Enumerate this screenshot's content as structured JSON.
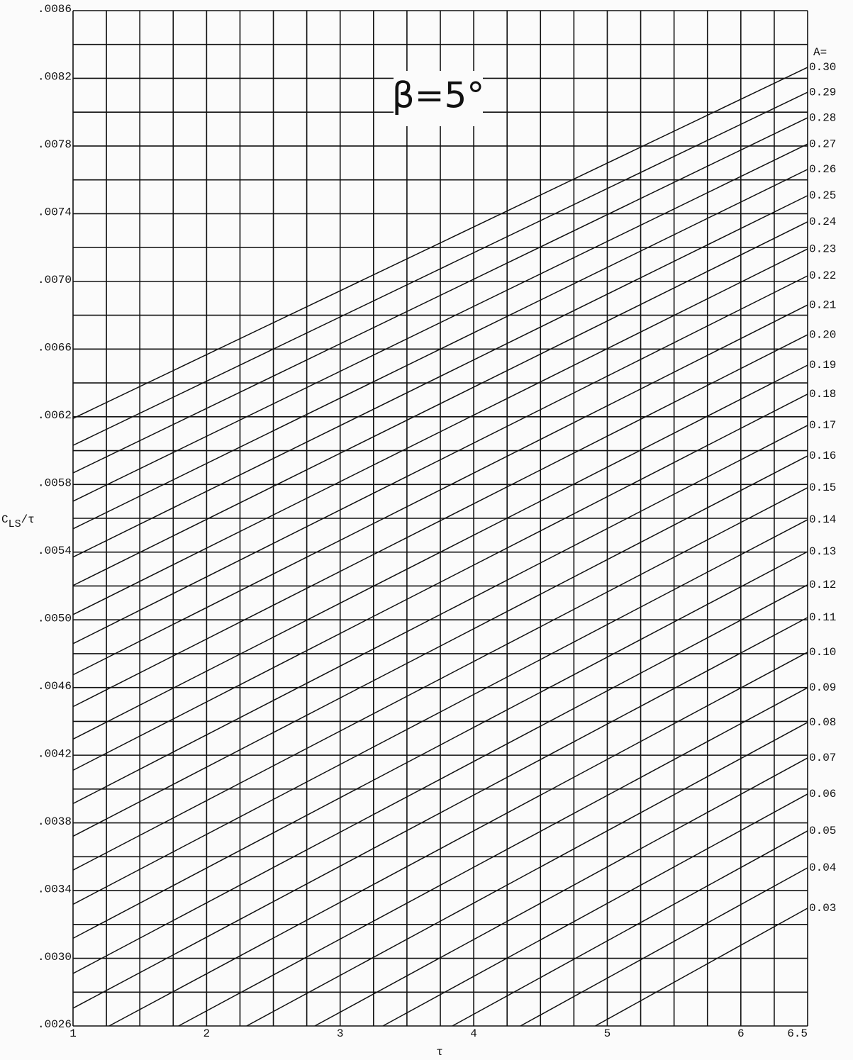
{
  "chart_data": {
    "type": "line",
    "title": "β=5°",
    "ylabel": [
      "C",
      "LS",
      "/τ"
    ],
    "xlabel": "τ",
    "legend_title": "A=",
    "color": "#111111",
    "grid": true,
    "xlim": [
      1,
      6.5
    ],
    "xticks": [
      1,
      2,
      3,
      4,
      5,
      6,
      6.5
    ],
    "xticks_minor": [
      1.25,
      1.5,
      1.75,
      2.25,
      2.5,
      2.75,
      3.25,
      3.5,
      3.75,
      4.25,
      4.5,
      4.75,
      5.25,
      5.5,
      5.75,
      6.25
    ],
    "ylim": [
      0.0026,
      0.0086
    ],
    "yticks": [
      {
        "value": 0.0026,
        "label": ".0026"
      },
      {
        "value": 0.003,
        "label": ".0030"
      },
      {
        "value": 0.0034,
        "label": ".0034"
      },
      {
        "value": 0.0038,
        "label": ".0038"
      },
      {
        "value": 0.0042,
        "label": ".0042"
      },
      {
        "value": 0.0046,
        "label": ".0046"
      },
      {
        "value": 0.005,
        "label": ".0050"
      },
      {
        "value": 0.0054,
        "label": ".0054"
      },
      {
        "value": 0.0058,
        "label": ".0058"
      },
      {
        "value": 0.0062,
        "label": ".0062"
      },
      {
        "value": 0.0066,
        "label": ".0066"
      },
      {
        "value": 0.007,
        "label": ".0070"
      },
      {
        "value": 0.0074,
        "label": ".0074"
      },
      {
        "value": 0.0078,
        "label": ".0078"
      },
      {
        "value": 0.0082,
        "label": ".0082"
      },
      {
        "value": 0.0086,
        "label": ".0086"
      }
    ],
    "yticks_minor": [
      0.0028,
      0.0032,
      0.0036,
      0.004,
      0.0044,
      0.0048,
      0.0052,
      0.0056,
      0.006,
      0.0064,
      0.0068,
      0.0072,
      0.0076,
      0.008,
      0.0084
    ],
    "series": [
      {
        "name": "0.03",
        "x": [
          4.91,
          6.5
        ],
        "values": [
          0.0026,
          0.003296
        ]
      },
      {
        "name": "0.04",
        "x": [
          4.35,
          6.5
        ],
        "values": [
          0.0026,
          0.003535
        ]
      },
      {
        "name": "0.05",
        "x": [
          3.84,
          6.5
        ],
        "values": [
          0.0026,
          0.003753
        ]
      },
      {
        "name": "0.06",
        "x": [
          3.32,
          6.5
        ],
        "values": [
          0.0026,
          0.003971
        ]
      },
      {
        "name": "0.07",
        "x": [
          2.81,
          6.5
        ],
        "values": [
          0.0026,
          0.004184
        ]
      },
      {
        "name": "0.08",
        "x": [
          2.3,
          6.5
        ],
        "values": [
          0.0026,
          0.004394
        ]
      },
      {
        "name": "0.09",
        "x": [
          1.79,
          6.5
        ],
        "values": [
          0.0026,
          0.004599
        ]
      },
      {
        "name": "0.10",
        "x": [
          1.27,
          6.5
        ],
        "values": [
          0.0026,
          0.004809
        ]
      },
      {
        "name": "0.11",
        "x": [
          1,
          6.5
        ],
        "values": [
          0.002705,
          0.005014
        ]
      },
      {
        "name": "0.12",
        "x": [
          1,
          6.5
        ],
        "values": [
          0.00291,
          0.005207
        ]
      },
      {
        "name": "0.13",
        "x": [
          1,
          6.5
        ],
        "values": [
          0.003118,
          0.005403
        ]
      },
      {
        "name": "0.14",
        "x": [
          1,
          6.5
        ],
        "values": [
          0.003319,
          0.005592
        ]
      },
      {
        "name": "0.15",
        "x": [
          1,
          6.5
        ],
        "values": [
          0.003521,
          0.005781
        ]
      },
      {
        "name": "0.16",
        "x": [
          1,
          6.5
        ],
        "values": [
          0.003721,
          0.005969
        ]
      },
      {
        "name": "0.17",
        "x": [
          1,
          6.5
        ],
        "values": [
          0.003914,
          0.006149
        ]
      },
      {
        "name": "0.18",
        "x": [
          1,
          6.5
        ],
        "values": [
          0.004111,
          0.006334
        ]
      },
      {
        "name": "0.19",
        "x": [
          1,
          6.5
        ],
        "values": [
          0.004295,
          0.006505
        ]
      },
      {
        "name": "0.20",
        "x": [
          1,
          6.5
        ],
        "values": [
          0.004487,
          0.006685
        ]
      },
      {
        "name": "0.21",
        "x": [
          1,
          6.5
        ],
        "values": [
          0.004675,
          0.006861
        ]
      },
      {
        "name": "0.22",
        "x": [
          1,
          6.5
        ],
        "values": [
          0.004859,
          0.007033
        ]
      },
      {
        "name": "0.23",
        "x": [
          1,
          6.5
        ],
        "values": [
          0.005031,
          0.007192
        ]
      },
      {
        "name": "0.24",
        "x": [
          1,
          6.5
        ],
        "values": [
          0.005203,
          0.007352
        ]
      },
      {
        "name": "0.25",
        "x": [
          1,
          6.5
        ],
        "values": [
          0.005371,
          0.007507
        ]
      },
      {
        "name": "0.26",
        "x": [
          1,
          6.5
        ],
        "values": [
          0.005538,
          0.007662
        ]
      },
      {
        "name": "0.27",
        "x": [
          1,
          6.5
        ],
        "values": [
          0.005701,
          0.007812
        ]
      },
      {
        "name": "0.28",
        "x": [
          1,
          6.5
        ],
        "values": [
          0.005868,
          0.007967
        ]
      },
      {
        "name": "0.29",
        "x": [
          1,
          6.5
        ],
        "values": [
          0.006031,
          0.008118
        ]
      },
      {
        "name": "0.30",
        "x": [
          1,
          6.5
        ],
        "values": [
          0.00619,
          0.008265
        ]
      }
    ]
  }
}
